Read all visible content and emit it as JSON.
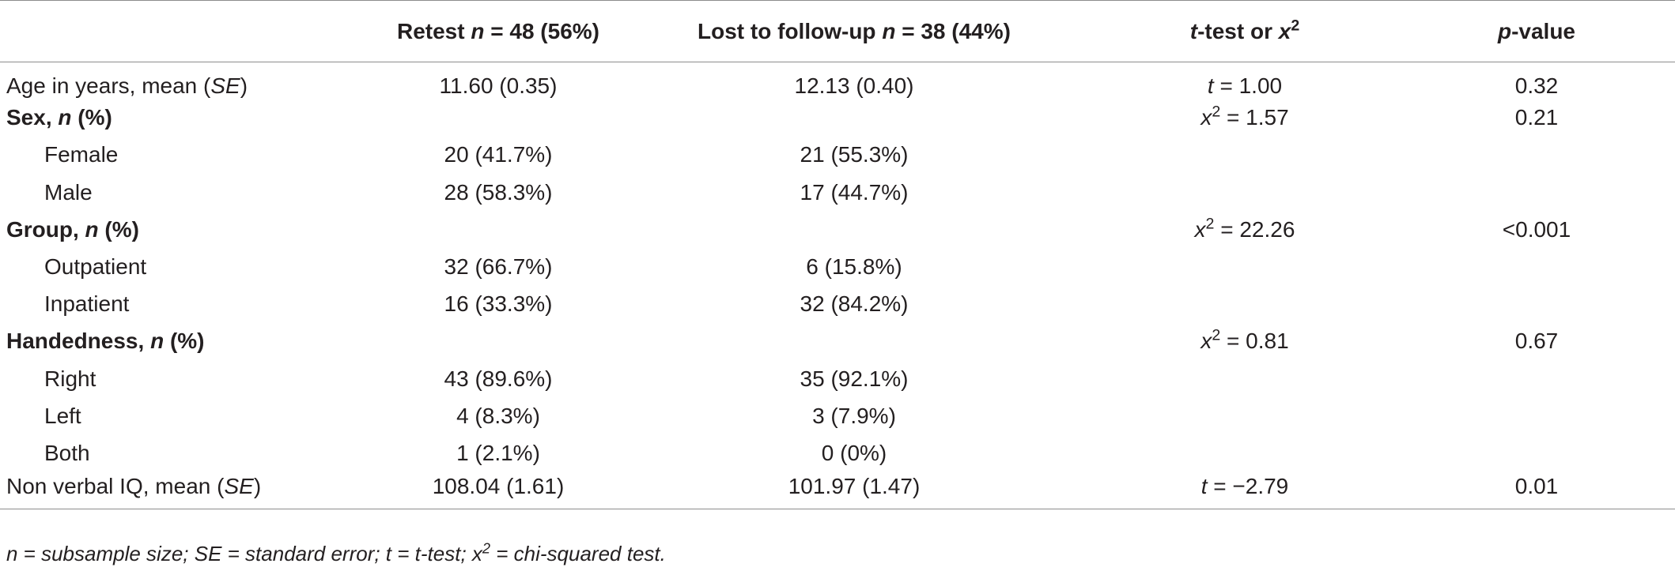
{
  "table": {
    "headers": [
      "",
      "Retest n = 48 (56%)",
      "Lost to follow-up n = 38 (44%)",
      "t-test or x2",
      "p-value"
    ],
    "rows": [
      {
        "label": "Age in years, mean (SE)",
        "retest": "11.60 (0.35)",
        "lost": "12.13 (0.40)",
        "test": "t = 1.00",
        "p": "0.32",
        "style": "plain"
      },
      {
        "label": "Sex, n (%)",
        "retest": "",
        "lost": "",
        "test": "x2 =  1.57",
        "p": "0.21",
        "style": "bold"
      },
      {
        "label": "Female",
        "retest": "20 (41.7%)",
        "lost": "21 (55.3%)",
        "test": "",
        "p": "",
        "style": "indent"
      },
      {
        "label": "Male",
        "retest": "28 (58.3%)",
        "lost": "17 (44.7%)",
        "test": "",
        "p": "",
        "style": "indent"
      },
      {
        "label": "Group, n (%)",
        "retest": "",
        "lost": "",
        "test": "x2 = 22.26",
        "p": "<0.001",
        "style": "bold"
      },
      {
        "label": "Outpatient",
        "retest": "32 (66.7%)",
        "lost": "6 (15.8%)",
        "test": "",
        "p": "",
        "style": "indent"
      },
      {
        "label": "Inpatient",
        "retest": "16 (33.3%)",
        "lost": "32 (84.2%)",
        "test": "",
        "p": "",
        "style": "indent"
      },
      {
        "label": "Handedness, n (%)",
        "retest": "",
        "lost": "",
        "test": "x2 = 0.81",
        "p": "0.67",
        "style": "bold"
      },
      {
        "label": "Right",
        "retest": "43 (89.6%)",
        "lost": "35 (92.1%)",
        "test": "",
        "p": "",
        "style": "indent"
      },
      {
        "label": "Left",
        "retest": "4 (8.3%)",
        "lost": "3 (7.9%)",
        "test": "",
        "p": "",
        "style": "indent"
      },
      {
        "label": "Both",
        "retest": "1 (2.1%)",
        "lost": "0 (0%)",
        "test": "",
        "p": "",
        "style": "indent"
      },
      {
        "label": "Non verbal IQ, mean (SE)",
        "retest": "108.04 (1.61)",
        "lost": "101.97 (1.47)",
        "test": "t = −2.79",
        "p": "0.01",
        "style": "plain"
      }
    ]
  },
  "footnote": "n = subsample size; SE = standard error; t = t-test; x2 = chi-squared test."
}
